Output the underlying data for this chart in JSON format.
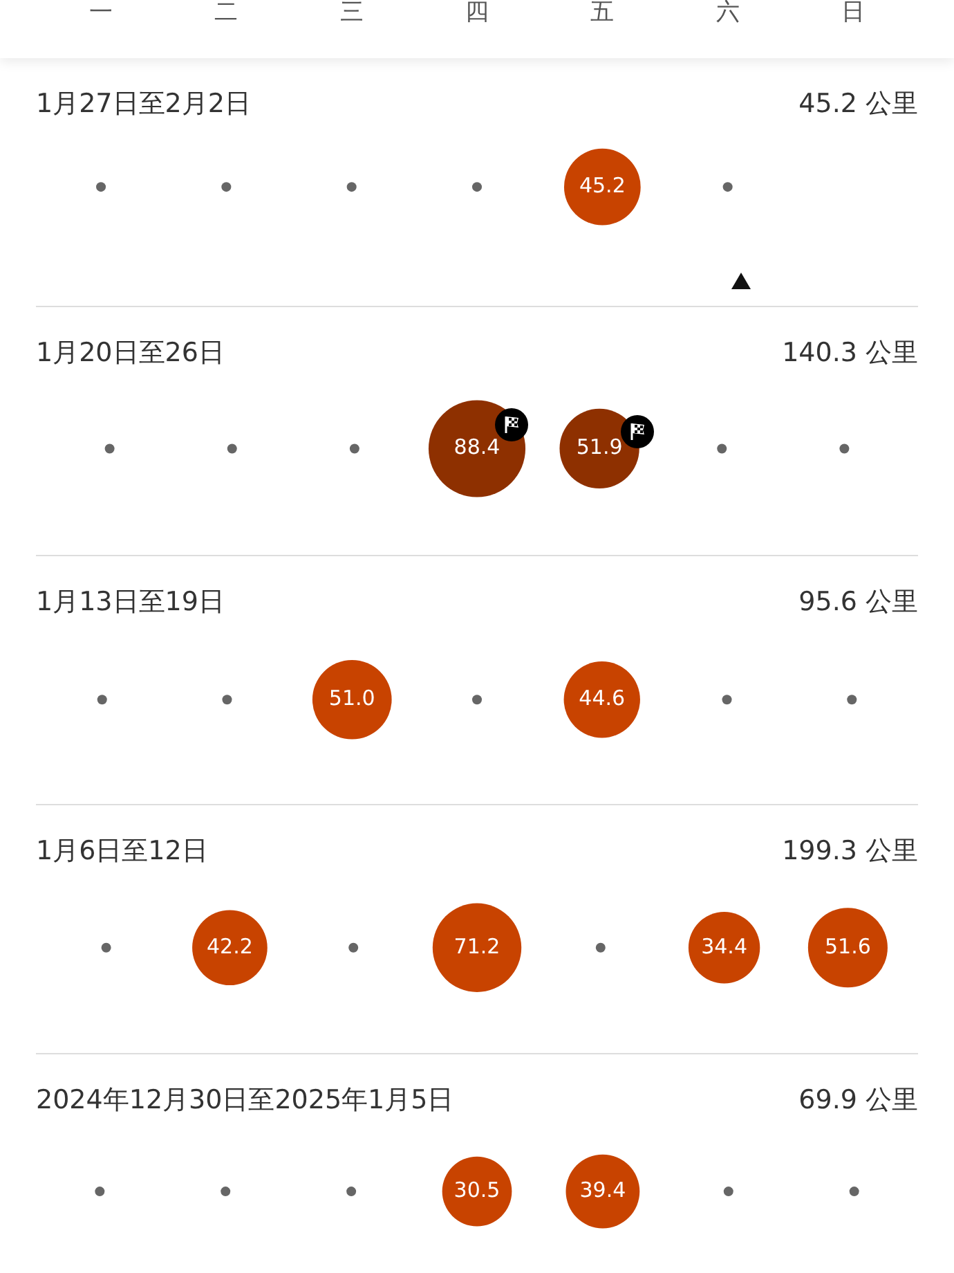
{
  "chart_data": [
    {
      "type": "other",
      "title": "1月27日至2月2日",
      "annotations": [
        "45.2 公里"
      ],
      "categories": [
        "一",
        "二",
        "三",
        "四",
        "五",
        "六",
        "日"
      ],
      "values": [
        null,
        null,
        null,
        null,
        45.2,
        null,
        null
      ],
      "value_labels": [
        null,
        null,
        null,
        null,
        "45.2",
        null,
        null
      ],
      "colors": [
        null,
        null,
        null,
        null,
        "#c84300",
        null,
        null
      ]
    },
    {
      "type": "other",
      "title": "1月20日至26日",
      "annotations": [
        "140.3 公里"
      ],
      "values": [
        null,
        null,
        null,
        88.4,
        51.9,
        null,
        null
      ],
      "value_labels": [
        null,
        null,
        null,
        "88.4",
        "51.9",
        null,
        null
      ],
      "colors": [
        null,
        null,
        null,
        "#8e3000",
        "#8e3000",
        null,
        null
      ]
    },
    {
      "type": "other",
      "title": "1月13日至19日",
      "annotations": [
        "95.6 公里"
      ],
      "values": [
        null,
        null,
        51.0,
        null,
        44.6,
        null,
        null
      ],
      "value_labels": [
        null,
        null,
        "51.0",
        null,
        "44.6",
        null,
        null
      ],
      "colors": [
        null,
        null,
        "#c84300",
        null,
        "#c84300",
        null,
        null
      ]
    },
    {
      "type": "other",
      "title": "1月6日至12日",
      "annotations": [
        "199.3 公里"
      ],
      "values": [
        null,
        42.2,
        null,
        71.2,
        null,
        34.4,
        51.6
      ],
      "value_labels": [
        null,
        "42.2",
        null,
        "71.2",
        null,
        "34.4",
        "51.6"
      ],
      "colors": [
        null,
        "#c84300",
        null,
        "#c84300",
        null,
        "#c84300",
        "#c84300"
      ]
    },
    {
      "type": "other",
      "title": "2024年12月30日至2025年1月5日",
      "annotations": [
        "69.9 公里"
      ],
      "values": [
        null,
        null,
        null,
        30.5,
        39.4,
        null,
        null
      ],
      "value_labels": [
        null,
        null,
        null,
        "30.5",
        "39.4",
        null,
        null
      ],
      "colors": [
        null,
        null,
        null,
        "#c84300",
        "#c84300",
        null,
        null
      ]
    }
  ]
}
